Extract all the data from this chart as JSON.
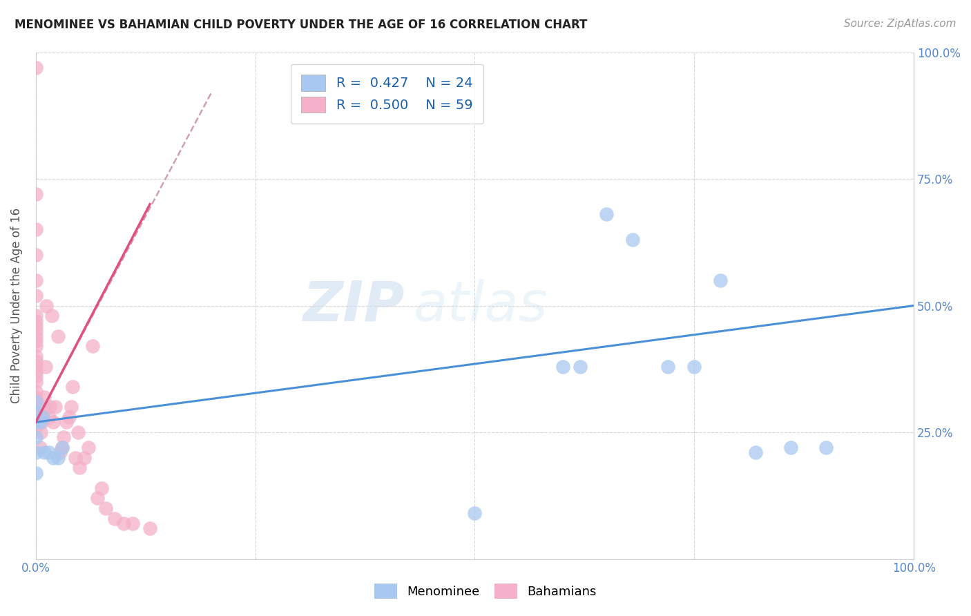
{
  "title": "MENOMINEE VS BAHAMIAN CHILD POVERTY UNDER THE AGE OF 16 CORRELATION CHART",
  "source": "Source: ZipAtlas.com",
  "ylabel": "Child Poverty Under the Age of 16",
  "xlim": [
    0.0,
    1.0
  ],
  "ylim": [
    0.0,
    1.0
  ],
  "xticks": [
    0.0,
    0.25,
    0.5,
    0.75,
    1.0
  ],
  "xticklabels": [
    "0.0%",
    "",
    "",
    "",
    "100.0%"
  ],
  "yticks": [
    0.0,
    0.25,
    0.5,
    0.75,
    1.0
  ],
  "yticklabels_right": [
    "",
    "25.0%",
    "50.0%",
    "75.0%",
    "100.0%"
  ],
  "menominee_color": "#a8c8f0",
  "bahamian_color": "#f4b0c8",
  "trendline_menominee_color": "#4a90d9",
  "trendline_bahamian_color": "#e05080",
  "trendline_bahamian_dash_color": "#d0a0b0",
  "legend_R_menominee": "0.427",
  "legend_N_menominee": "24",
  "legend_R_bahamian": "0.500",
  "legend_N_bahamian": "59",
  "watermark_zip": "ZIP",
  "watermark_atlas": "atlas",
  "menominee_x": [
    0.0,
    0.0,
    0.0,
    0.0,
    0.0,
    0.0,
    0.005,
    0.008,
    0.01,
    0.015,
    0.02,
    0.025,
    0.03,
    0.6,
    0.62,
    0.65,
    0.68,
    0.72,
    0.75,
    0.78,
    0.82,
    0.86,
    0.9,
    0.5
  ],
  "menominee_y": [
    0.27,
    0.29,
    0.31,
    0.24,
    0.21,
    0.17,
    0.27,
    0.28,
    0.21,
    0.21,
    0.2,
    0.2,
    0.22,
    0.38,
    0.38,
    0.68,
    0.63,
    0.38,
    0.38,
    0.55,
    0.21,
    0.22,
    0.22,
    0.09
  ],
  "bahamian_x": [
    0.0,
    0.0,
    0.0,
    0.0,
    0.0,
    0.0,
    0.0,
    0.0,
    0.0,
    0.0,
    0.0,
    0.0,
    0.0,
    0.0,
    0.0,
    0.0,
    0.0,
    0.0,
    0.0,
    0.0,
    0.0,
    0.0,
    0.0,
    0.0,
    0.0,
    0.005,
    0.006,
    0.007,
    0.008,
    0.009,
    0.01,
    0.011,
    0.012,
    0.015,
    0.016,
    0.018,
    0.02,
    0.022,
    0.025,
    0.028,
    0.03,
    0.032,
    0.035,
    0.038,
    0.04,
    0.042,
    0.045,
    0.048,
    0.05,
    0.055,
    0.06,
    0.065,
    0.07,
    0.075,
    0.08,
    0.09,
    0.1,
    0.11,
    0.13
  ],
  "bahamian_y": [
    0.26,
    0.28,
    0.29,
    0.31,
    0.32,
    0.33,
    0.35,
    0.36,
    0.37,
    0.38,
    0.39,
    0.4,
    0.42,
    0.43,
    0.44,
    0.45,
    0.46,
    0.47,
    0.48,
    0.52,
    0.55,
    0.6,
    0.65,
    0.72,
    0.97,
    0.22,
    0.25,
    0.27,
    0.28,
    0.3,
    0.32,
    0.38,
    0.5,
    0.28,
    0.3,
    0.48,
    0.27,
    0.3,
    0.44,
    0.21,
    0.22,
    0.24,
    0.27,
    0.28,
    0.3,
    0.34,
    0.2,
    0.25,
    0.18,
    0.2,
    0.22,
    0.42,
    0.12,
    0.14,
    0.1,
    0.08,
    0.07,
    0.07,
    0.06
  ],
  "trendline_men_x0": 0.0,
  "trendline_men_x1": 1.0,
  "trendline_men_y0": 0.27,
  "trendline_men_y1": 0.5,
  "trendline_bah_solid_x0": 0.0,
  "trendline_bah_solid_x1": 0.13,
  "trendline_bah_y0": 0.27,
  "trendline_bah_y1": 0.7,
  "trendline_bah_dash_x0": 0.0,
  "trendline_bah_dash_x1": 0.2,
  "trendline_bah_dash_y0": 0.27,
  "trendline_bah_dash_y1": 0.92
}
